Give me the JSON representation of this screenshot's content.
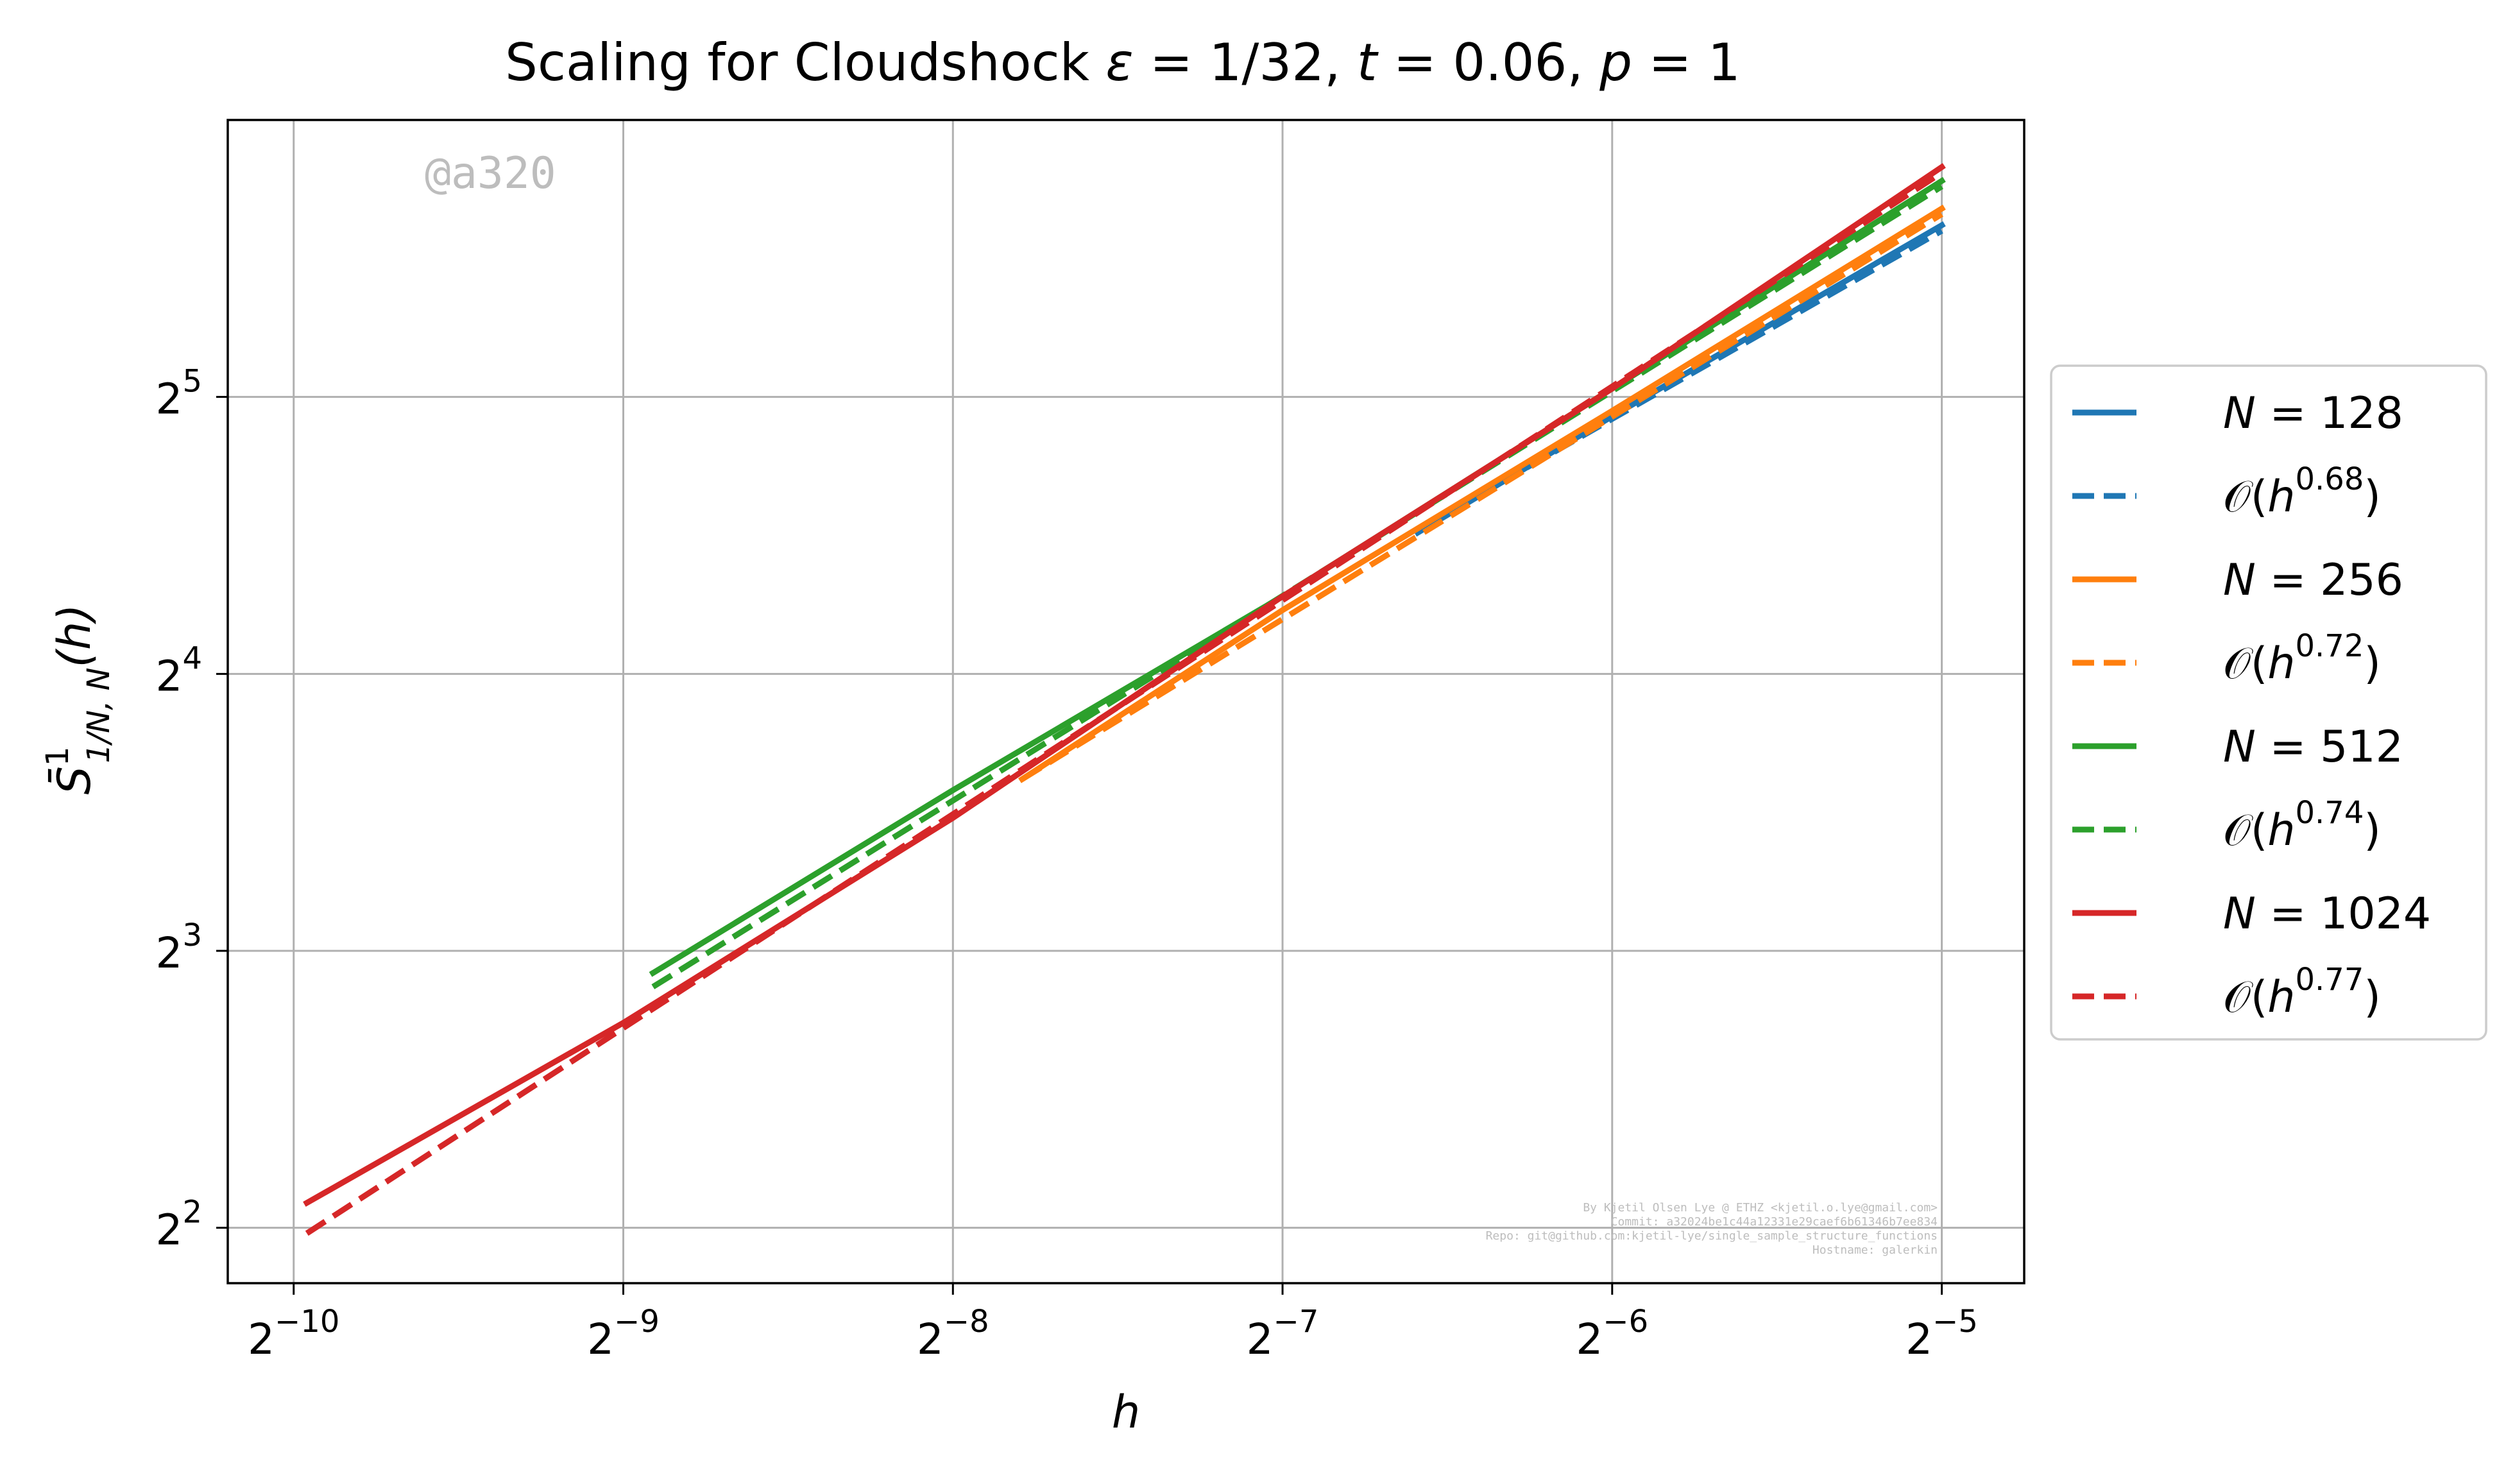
{
  "chart_data": {
    "type": "line",
    "title": "Scaling for Cloudshock ε = 1/32, t = 0.06, p = 1",
    "title_parts": {
      "pre": "Scaling for Cloudshock ",
      "eps_sym": "ε",
      "eps_val": " = 1/32, ",
      "t_sym": "t",
      "t_val": " = 0.06, ",
      "p_sym": "p",
      "p_val": " = 1"
    },
    "xlabel": "h",
    "ylabel": {
      "base": "S̄",
      "sup": "1",
      "sub": "1/N, N",
      "tail": "(h)"
    },
    "xscale": "log2",
    "yscale": "log2",
    "xlim_log2": [
      -10.2,
      -4.75
    ],
    "ylim_log2": [
      1.8,
      6.0
    ],
    "x_ticks": [
      {
        "base": "2",
        "exp": "−10",
        "log2": -10
      },
      {
        "base": "2",
        "exp": "−9",
        "log2": -9
      },
      {
        "base": "2",
        "exp": "−8",
        "log2": -8
      },
      {
        "base": "2",
        "exp": "−7",
        "log2": -7
      },
      {
        "base": "2",
        "exp": "−6",
        "log2": -6
      },
      {
        "base": "2",
        "exp": "−5",
        "log2": -5
      }
    ],
    "y_ticks": [
      {
        "base": "2",
        "exp": "2",
        "log2": 2
      },
      {
        "base": "2",
        "exp": "3",
        "log2": 3
      },
      {
        "base": "2",
        "exp": "4",
        "log2": 4
      },
      {
        "base": "2",
        "exp": "5",
        "log2": 5
      }
    ],
    "grid": true,
    "legend_placement": "outside-right",
    "series": [
      {
        "name": "N = 128",
        "label_sym": "N",
        "label_val": " = 128",
        "color": "#1f77b4",
        "style": "solid",
        "x_log2": [
          -6.59,
          -6.0,
          -5.0
        ],
        "y_log2": [
          4.51,
          4.93,
          5.62
        ]
      },
      {
        "name": "𝒪(h^0.68)",
        "label_pre": "𝒪(",
        "label_sym": "h",
        "label_exp": "0.68",
        "label_post": ")",
        "color": "#1f77b4",
        "style": "dashed",
        "x_log2": [
          -6.59,
          -5.0
        ],
        "y_log2": [
          4.52,
          5.6
        ]
      },
      {
        "name": "N = 256",
        "label_sym": "N",
        "label_val": " = 256",
        "color": "#ff7f0e",
        "style": "solid",
        "x_log2": [
          -7.79,
          -7.0,
          -6.0,
          -5.0
        ],
        "y_log2": [
          3.62,
          4.23,
          4.95,
          5.68
        ]
      },
      {
        "name": "𝒪(h^0.72)",
        "label_pre": "𝒪(",
        "label_sym": "h",
        "label_exp": "0.72",
        "label_post": ")",
        "color": "#ff7f0e",
        "style": "dashed",
        "x_log2": [
          -7.79,
          -5.0
        ],
        "y_log2": [
          3.62,
          5.66
        ]
      },
      {
        "name": "N = 512",
        "label_sym": "N",
        "label_val": " = 512",
        "color": "#2ca02c",
        "style": "solid",
        "x_log2": [
          -8.91,
          -8.0,
          -7.0,
          -6.0,
          -5.0
        ],
        "y_log2": [
          2.92,
          3.58,
          4.28,
          5.03,
          5.78
        ]
      },
      {
        "name": "𝒪(h^0.74)",
        "label_pre": "𝒪(",
        "label_sym": "h",
        "label_exp": "0.74",
        "label_post": ")",
        "color": "#2ca02c",
        "style": "dashed",
        "x_log2": [
          -8.91,
          -5.0
        ],
        "y_log2": [
          2.87,
          5.76
        ]
      },
      {
        "name": "N = 1024",
        "label_sym": "N",
        "label_val": " = 1024",
        "color": "#d62728",
        "style": "solid",
        "x_log2": [
          -9.96,
          -9.0,
          -8.0,
          -7.0,
          -6.0,
          -5.0
        ],
        "y_log2": [
          2.09,
          2.74,
          3.48,
          4.28,
          5.03,
          5.83
        ]
      },
      {
        "name": "𝒪(h^0.77)",
        "label_pre": "𝒪(",
        "label_sym": "h",
        "label_exp": "0.77",
        "label_post": ")",
        "color": "#d62728",
        "style": "dashed",
        "x_log2": [
          -9.96,
          -5.0
        ],
        "y_log2": [
          1.98,
          5.81
        ]
      }
    ]
  },
  "watermark": "@a320",
  "footer_text": [
    "By Kjetil Olsen Lye @ ETHZ <kjetil.o.lye@gmail.com>",
    "Commit: a32024be1c44a12331e29caef6b61346b7ee834",
    "Repo: git@github.com:kjetil-lye/single_sample_structure_functions",
    "Hostname: galerkin"
  ]
}
